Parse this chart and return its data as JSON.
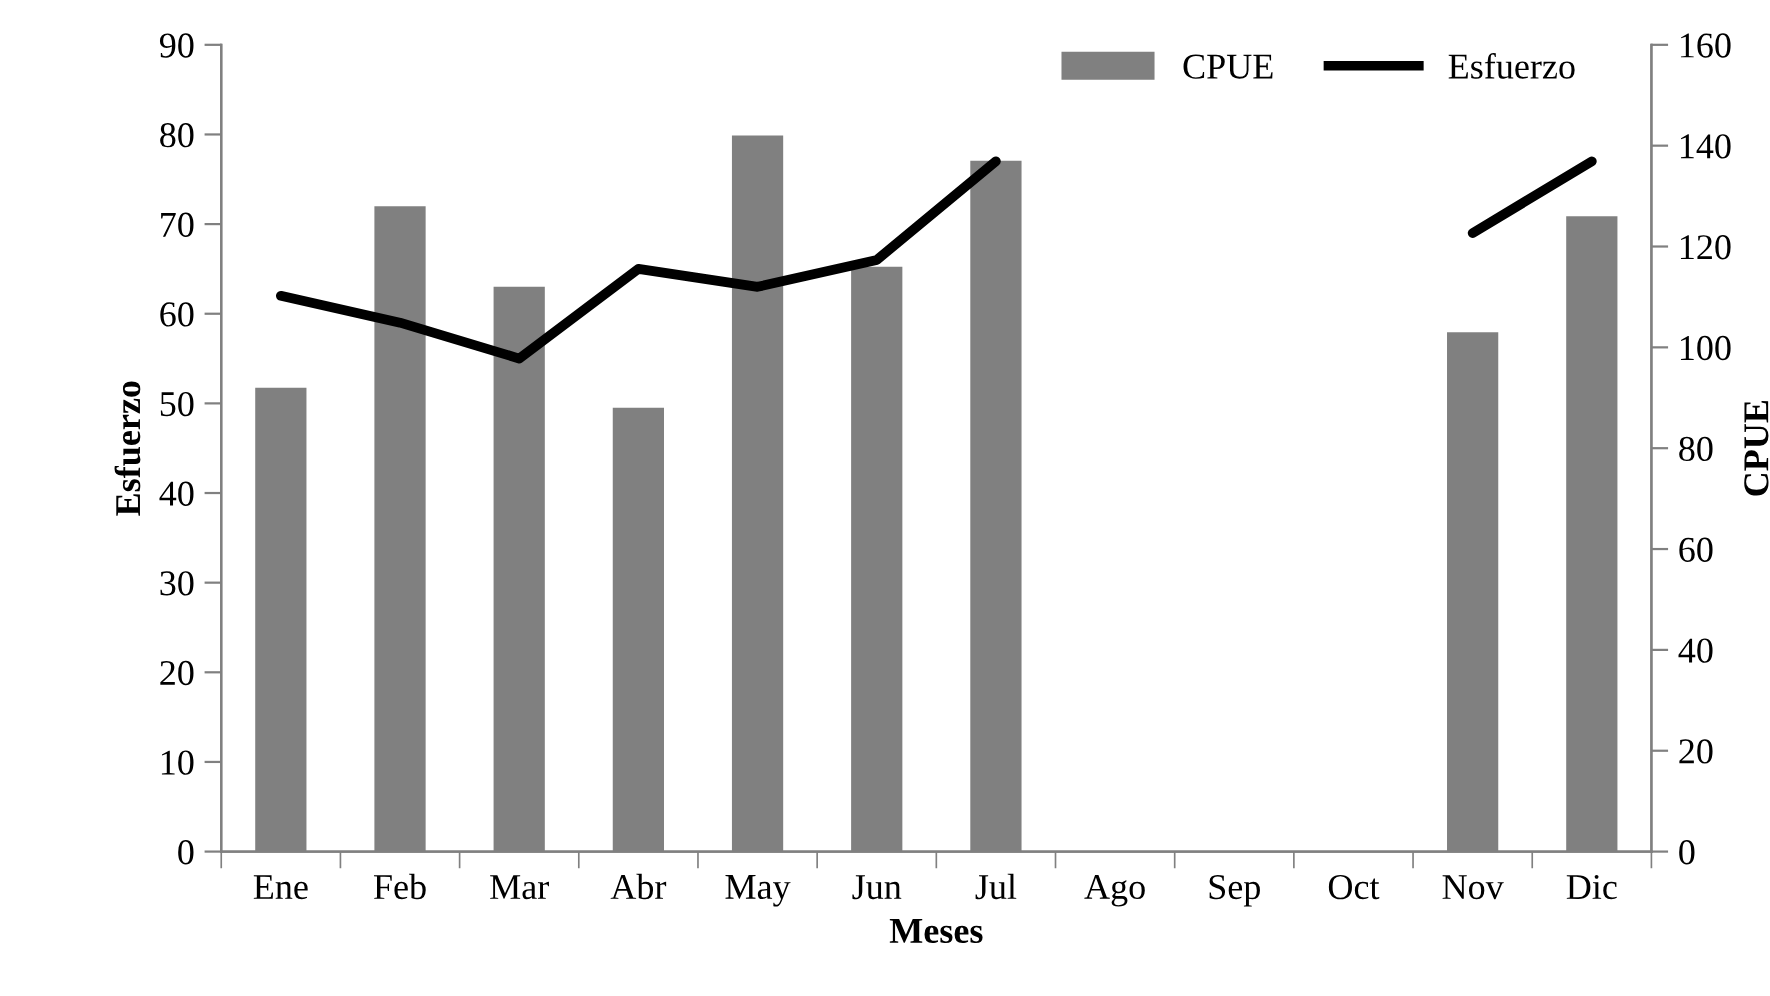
{
  "chart_data": {
    "type": "bar",
    "xlabel": "Meses",
    "ylabel": "Esfuerzo",
    "y2label": "CPUE",
    "categories": [
      "Ene",
      "Feb",
      "Mar",
      "Abr",
      "May",
      "Jun",
      "Jul",
      "Ago",
      "Sep",
      "Oct",
      "Nov",
      "Dic"
    ],
    "series": [
      {
        "name": "CPUE",
        "axis": "y2",
        "color": "#808080",
        "values": [
          92,
          128,
          112,
          88,
          142,
          116,
          137,
          null,
          null,
          null,
          103,
          126
        ]
      },
      {
        "name": "Esfuerzo",
        "type": "line",
        "axis": "y",
        "color": "#000000",
        "values": [
          62,
          59,
          55,
          65,
          63,
          66,
          77,
          null,
          null,
          null,
          69,
          77
        ]
      }
    ],
    "ylim": [
      0,
      90
    ],
    "yticks": [
      0,
      10,
      20,
      30,
      40,
      50,
      60,
      70,
      80,
      90
    ],
    "y2lim": [
      0,
      160
    ],
    "y2ticks": [
      0,
      20,
      40,
      60,
      80,
      100,
      120,
      140,
      160
    ],
    "legend": "top right",
    "grid": false,
    "marker": "none",
    "line_style": "solid"
  }
}
